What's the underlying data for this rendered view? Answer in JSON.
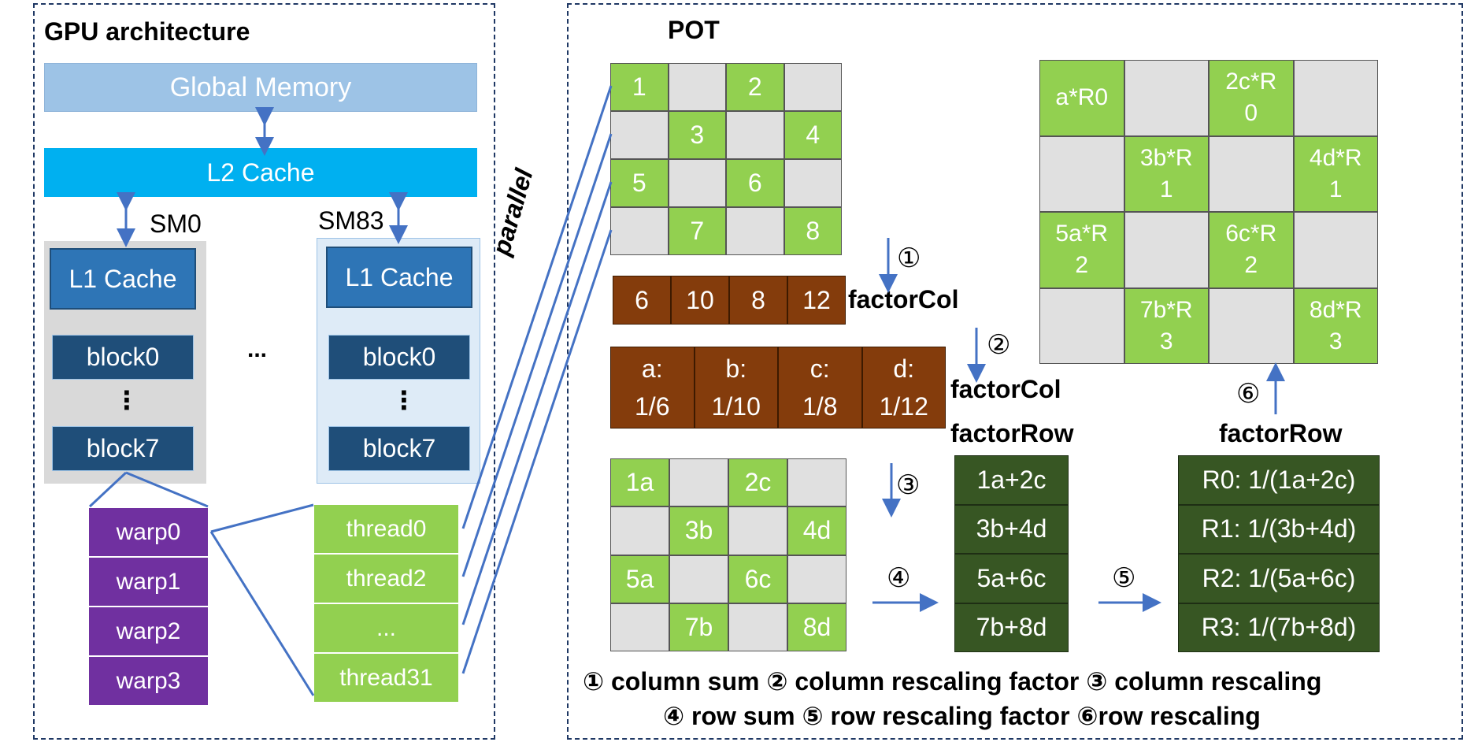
{
  "gpu": {
    "title": "GPU architecture",
    "global_memory": "Global Memory",
    "l2_cache": "L2 Cache",
    "sm0_label": "SM0",
    "sm83_label": "SM83",
    "l1_cache": "L1 Cache",
    "block_first": "block0",
    "block_last": "block7",
    "vdots": "⋮",
    "hdots": "...",
    "warps": [
      "warp0",
      "warp1",
      "warp2",
      "warp3"
    ],
    "threads": [
      "thread0",
      "thread2",
      "...",
      "thread31"
    ],
    "parallel": "parallel"
  },
  "pot": {
    "title": "POT",
    "matrix1": [
      [
        "1",
        "",
        "2",
        ""
      ],
      [
        "",
        "3",
        "",
        "4"
      ],
      [
        "5",
        "",
        "6",
        ""
      ],
      [
        "",
        "7",
        "",
        "8"
      ]
    ],
    "factor_col_sums": [
      "6",
      "10",
      "8",
      "12"
    ],
    "factor_col_rescale": [
      {
        "top": "a:",
        "bottom": "1/6"
      },
      {
        "top": "b:",
        "bottom": "1/10"
      },
      {
        "top": "c:",
        "bottom": "1/8"
      },
      {
        "top": "d:",
        "bottom": "1/12"
      }
    ],
    "matrix2": [
      [
        "1a",
        "",
        "2c",
        ""
      ],
      [
        "",
        "3b",
        "",
        "4d"
      ],
      [
        "5a",
        "",
        "6c",
        ""
      ],
      [
        "",
        "7b",
        "",
        "8d"
      ]
    ],
    "row_sums": [
      "1a+2c",
      "3b+4d",
      "5a+6c",
      "7b+8d"
    ],
    "row_rescale": [
      "R0: 1/(1a+2c)",
      "R1: 1/(3b+4d)",
      "R2: 1/(5a+6c)",
      "R3: 1/(7b+8d)"
    ],
    "matrix3": [
      [
        {
          "t": "a*R0",
          "b": ""
        },
        {
          "t": "",
          "b": ""
        },
        {
          "t": "2c*R",
          "b": "0"
        },
        {
          "t": "",
          "b": ""
        }
      ],
      [
        {
          "t": "",
          "b": ""
        },
        {
          "t": "3b*R",
          "b": "1"
        },
        {
          "t": "",
          "b": ""
        },
        {
          "t": "4d*R",
          "b": "1"
        }
      ],
      [
        {
          "t": "5a*R",
          "b": "2"
        },
        {
          "t": "",
          "b": ""
        },
        {
          "t": "6c*R",
          "b": "2"
        },
        {
          "t": "",
          "b": ""
        }
      ],
      [
        {
          "t": "",
          "b": ""
        },
        {
          "t": "7b*R",
          "b": "3"
        },
        {
          "t": "",
          "b": ""
        },
        {
          "t": "8d*R",
          "b": "3"
        }
      ]
    ],
    "step1": "①",
    "step2": "②",
    "step3": "③",
    "step4": "④",
    "step5": "⑤",
    "step6": "⑥",
    "factor_col_label": "factorCol",
    "factor_row_label": "factorRow",
    "legend_line1": "① column sum ② column rescaling factor ③ column rescaling",
    "legend_line2": "④ row sum ⑤ row rescaling factor ⑥row rescaling",
    "colors": {
      "green": "#92d050",
      "gray": "#e0e0e0",
      "brown": "#843c0c",
      "dark_green": "#375623",
      "purple": "#7030a0",
      "arrow": "#4472c4"
    }
  }
}
